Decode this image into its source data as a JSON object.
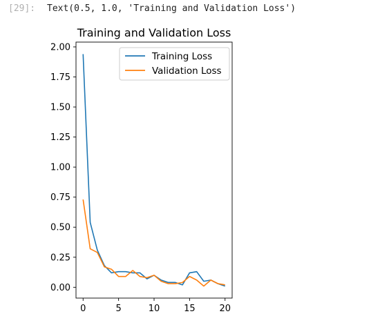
{
  "cell": {
    "prompt": "[29]:",
    "output": "Text(0.5, 1.0, 'Training and Validation Loss')"
  },
  "chart_data": {
    "type": "line",
    "title": "Training and Validation Loss",
    "xlabel": "",
    "ylabel": "",
    "xlim": [
      -1,
      21
    ],
    "ylim": [
      -0.09,
      2.04
    ],
    "xticks": [
      0,
      5,
      10,
      15,
      20
    ],
    "xtick_labels": [
      "0",
      "5",
      "10",
      "15",
      "20"
    ],
    "yticks": [
      0.0,
      0.25,
      0.5,
      0.75,
      1.0,
      1.25,
      1.5,
      1.75,
      2.0
    ],
    "ytick_labels": [
      "0.00",
      "0.25",
      "0.50",
      "0.75",
      "1.00",
      "1.25",
      "1.50",
      "1.75",
      "2.00"
    ],
    "grid": false,
    "legend_position": "upper right",
    "x": [
      0,
      1,
      2,
      3,
      4,
      5,
      6,
      7,
      8,
      9,
      10,
      11,
      12,
      13,
      14,
      15,
      16,
      17,
      18,
      19,
      20
    ],
    "series": [
      {
        "name": "Training Loss",
        "color": "#1f77b4",
        "values": [
          1.94,
          0.54,
          0.31,
          0.18,
          0.12,
          0.13,
          0.13,
          0.12,
          0.12,
          0.07,
          0.1,
          0.06,
          0.04,
          0.04,
          0.02,
          0.12,
          0.13,
          0.05,
          0.06,
          0.03,
          0.01
        ]
      },
      {
        "name": "Validation Loss",
        "color": "#ff7f0e",
        "values": [
          0.73,
          0.32,
          0.29,
          0.17,
          0.15,
          0.09,
          0.09,
          0.14,
          0.09,
          0.08,
          0.1,
          0.05,
          0.03,
          0.03,
          0.04,
          0.09,
          0.06,
          0.01,
          0.06,
          0.03,
          0.02
        ]
      }
    ]
  }
}
